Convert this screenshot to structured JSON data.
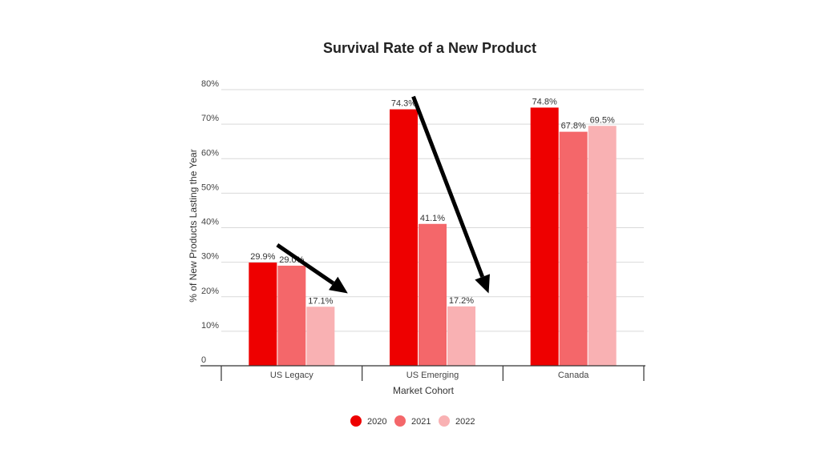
{
  "chart_data": {
    "type": "bar",
    "title": "Survival Rate of a New Product",
    "xlabel": "Market Cohort",
    "ylabel": "% of New Products Lasting the Year",
    "categories": [
      "US Legacy",
      "US Emerging",
      "Canada"
    ],
    "series": [
      {
        "name": "2020",
        "values": [
          29.9,
          74.3,
          74.8
        ],
        "labels": [
          "29.9%",
          "74.3%",
          "74.8%"
        ],
        "color": "#ee0000"
      },
      {
        "name": "2021",
        "values": [
          29.0,
          41.1,
          67.8
        ],
        "labels": [
          "29.0%",
          "41.1%",
          "67.8%"
        ],
        "color": "#f4676a"
      },
      {
        "name": "2022",
        "values": [
          17.1,
          17.2,
          69.5
        ],
        "labels": [
          "17.1%",
          "17.2%",
          "69.5%"
        ],
        "color": "#f9b1b3"
      }
    ],
    "ylim": [
      0,
      80
    ],
    "yticks": [
      {
        "value": 0,
        "label": "0"
      },
      {
        "value": 10,
        "label": "10%"
      },
      {
        "value": 20,
        "label": "20%"
      },
      {
        "value": 30,
        "label": "30%"
      },
      {
        "value": 40,
        "label": "40%"
      },
      {
        "value": 50,
        "label": "50%"
      },
      {
        "value": 60,
        "label": "60%"
      },
      {
        "value": 70,
        "label": "70%"
      },
      {
        "value": 80,
        "label": "80%"
      }
    ],
    "grid": true,
    "legend_position": "bottom",
    "annotations": [
      {
        "type": "arrow",
        "category": "US Legacy",
        "from_value": 35,
        "to_value": 21,
        "color": "#000000"
      },
      {
        "type": "arrow",
        "category": "US Emerging",
        "from_value": 78,
        "to_value": 21,
        "color": "#000000"
      }
    ]
  }
}
